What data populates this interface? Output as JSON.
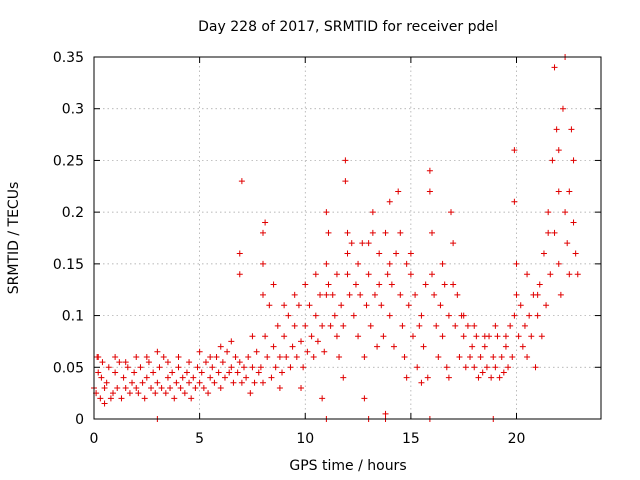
{
  "chart_data": {
    "type": "scatter",
    "title": "Day 228 of 2017, SRMTID for receiver pdel",
    "xlabel": "GPS time / hours",
    "ylabel": "SRMTID / TECUs",
    "xlim": [
      0,
      24
    ],
    "ylim": [
      0,
      0.35
    ],
    "xticks": [
      0,
      5,
      10,
      15,
      20
    ],
    "xtick_labels": [
      "0",
      "5",
      "10",
      "15",
      "20"
    ],
    "yticks": [
      0,
      0.05,
      0.1,
      0.15,
      0.2,
      0.25,
      0.3,
      0.35
    ],
    "ytick_labels": [
      "0",
      "0.05",
      "0.1",
      "0.15",
      "0.2",
      "0.25",
      "0.3",
      "0.35"
    ],
    "grid": true,
    "marker": "+",
    "color": "#e00000",
    "series": [
      {
        "name": "SRMTID",
        "points": [
          [
            0.0,
            0.03
          ],
          [
            0.1,
            0.025
          ],
          [
            0.15,
            0.06
          ],
          [
            0.2,
            0.045
          ],
          [
            0.3,
            0.02
          ],
          [
            0.35,
            0.04
          ],
          [
            0.4,
            0.055
          ],
          [
            0.5,
            0.03
          ],
          [
            0.6,
            0.035
          ],
          [
            0.7,
            0.05
          ],
          [
            0.8,
            0.02
          ],
          [
            0.9,
            0.025
          ],
          [
            1.0,
            0.045
          ],
          [
            1.1,
            0.03
          ],
          [
            1.2,
            0.055
          ],
          [
            1.3,
            0.02
          ],
          [
            1.4,
            0.04
          ],
          [
            1.5,
            0.03
          ],
          [
            1.6,
            0.05
          ],
          [
            1.7,
            0.025
          ],
          [
            1.8,
            0.035
          ],
          [
            1.9,
            0.045
          ],
          [
            2.0,
            0.03
          ],
          [
            2.1,
            0.025
          ],
          [
            2.2,
            0.05
          ],
          [
            2.3,
            0.035
          ],
          [
            2.4,
            0.02
          ],
          [
            2.5,
            0.04
          ],
          [
            2.6,
            0.055
          ],
          [
            2.7,
            0.03
          ],
          [
            2.8,
            0.045
          ],
          [
            2.9,
            0.025
          ],
          [
            3.0,
            0.035
          ],
          [
            3.1,
            0.05
          ],
          [
            3.2,
            0.03
          ],
          [
            3.3,
            0.06
          ],
          [
            3.4,
            0.025
          ],
          [
            3.5,
            0.04
          ],
          [
            3.6,
            0.03
          ],
          [
            3.7,
            0.045
          ],
          [
            3.8,
            0.02
          ],
          [
            3.9,
            0.035
          ],
          [
            4.0,
            0.05
          ],
          [
            4.1,
            0.03
          ],
          [
            4.2,
            0.04
          ],
          [
            4.3,
            0.025
          ],
          [
            4.4,
            0.045
          ],
          [
            4.5,
            0.035
          ],
          [
            4.6,
            0.02
          ],
          [
            4.7,
            0.04
          ],
          [
            4.8,
            0.03
          ],
          [
            4.9,
            0.05
          ],
          [
            5.0,
            0.035
          ],
          [
            5.1,
            0.045
          ],
          [
            5.2,
            0.03
          ],
          [
            5.3,
            0.055
          ],
          [
            5.4,
            0.025
          ],
          [
            5.5,
            0.04
          ],
          [
            5.6,
            0.05
          ],
          [
            5.7,
            0.035
          ],
          [
            5.8,
            0.06
          ],
          [
            5.9,
            0.045
          ],
          [
            6.0,
            0.03
          ],
          [
            6.1,
            0.055
          ],
          [
            6.2,
            0.04
          ],
          [
            6.3,
            0.065
          ],
          [
            6.4,
            0.045
          ],
          [
            6.5,
            0.05
          ],
          [
            6.6,
            0.035
          ],
          [
            6.7,
            0.06
          ],
          [
            6.8,
            0.045
          ],
          [
            6.9,
            0.055
          ],
          [
            7.0,
            0.035
          ],
          [
            7.0,
            0.23
          ],
          [
            6.9,
            0.16
          ],
          [
            6.9,
            0.14
          ],
          [
            7.1,
            0.05
          ],
          [
            7.2,
            0.04
          ],
          [
            7.3,
            0.06
          ],
          [
            7.4,
            0.025
          ],
          [
            7.5,
            0.05
          ],
          [
            7.6,
            0.035
          ],
          [
            7.7,
            0.065
          ],
          [
            7.8,
            0.045
          ],
          [
            7.9,
            0.05
          ],
          [
            8.0,
            0.035
          ],
          [
            8.0,
            0.18
          ],
          [
            8.1,
            0.19
          ],
          [
            8.0,
            0.15
          ],
          [
            8.1,
            0.08
          ],
          [
            8.2,
            0.06
          ],
          [
            8.3,
            0.11
          ],
          [
            8.4,
            0.04
          ],
          [
            8.5,
            0.07
          ],
          [
            8.6,
            0.05
          ],
          [
            8.7,
            0.09
          ],
          [
            8.8,
            0.06
          ],
          [
            8.9,
            0.045
          ],
          [
            9.0,
            0.08
          ],
          [
            9.1,
            0.06
          ],
          [
            9.2,
            0.1
          ],
          [
            9.3,
            0.05
          ],
          [
            9.4,
            0.07
          ],
          [
            9.5,
            0.09
          ],
          [
            9.6,
            0.06
          ],
          [
            9.7,
            0.11
          ],
          [
            9.8,
            0.075
          ],
          [
            9.9,
            0.05
          ],
          [
            10.0,
            0.09
          ],
          [
            10.1,
            0.065
          ],
          [
            10.2,
            0.11
          ],
          [
            10.3,
            0.08
          ],
          [
            10.4,
            0.06
          ],
          [
            10.5,
            0.1
          ],
          [
            10.6,
            0.075
          ],
          [
            10.7,
            0.12
          ],
          [
            10.8,
            0.09
          ],
          [
            10.9,
            0.065
          ],
          [
            11.0,
            0.15
          ],
          [
            11.0,
            0.2
          ],
          [
            11.1,
            0.18
          ],
          [
            11.1,
            0.13
          ],
          [
            11.2,
            0.09
          ],
          [
            11.3,
            0.12
          ],
          [
            11.4,
            0.1
          ],
          [
            11.5,
            0.08
          ],
          [
            11.6,
            0.06
          ],
          [
            11.7,
            0.11
          ],
          [
            11.8,
            0.09
          ],
          [
            11.9,
            0.25
          ],
          [
            11.9,
            0.23
          ],
          [
            12.0,
            0.14
          ],
          [
            12.0,
            0.16
          ],
          [
            12.1,
            0.12
          ],
          [
            12.2,
            0.17
          ],
          [
            12.3,
            0.1
          ],
          [
            12.4,
            0.13
          ],
          [
            12.5,
            0.08
          ],
          [
            12.6,
            0.12
          ],
          [
            12.7,
            0.17
          ],
          [
            12.8,
            0.06
          ],
          [
            12.9,
            0.11
          ],
          [
            13.0,
            0.14
          ],
          [
            13.1,
            0.09
          ],
          [
            13.2,
            0.2
          ],
          [
            13.2,
            0.18
          ],
          [
            13.3,
            0.12
          ],
          [
            13.4,
            0.07
          ],
          [
            13.5,
            0.16
          ],
          [
            13.6,
            0.11
          ],
          [
            13.7,
            0.08
          ],
          [
            13.8,
            0.18
          ],
          [
            13.9,
            0.14
          ],
          [
            14.0,
            0.21
          ],
          [
            14.0,
            0.1
          ],
          [
            14.1,
            0.13
          ],
          [
            14.2,
            0.07
          ],
          [
            14.3,
            0.16
          ],
          [
            14.4,
            0.22
          ],
          [
            14.5,
            0.12
          ],
          [
            14.6,
            0.09
          ],
          [
            14.7,
            0.06
          ],
          [
            14.8,
            0.15
          ],
          [
            14.9,
            0.11
          ],
          [
            15.0,
            0.16
          ],
          [
            15.1,
            0.08
          ],
          [
            15.2,
            0.12
          ],
          [
            15.3,
            0.05
          ],
          [
            15.4,
            0.09
          ],
          [
            15.5,
            0.035
          ],
          [
            15.6,
            0.07
          ],
          [
            15.7,
            0.13
          ],
          [
            15.8,
            0.04
          ],
          [
            15.9,
            0.24
          ],
          [
            15.9,
            0.22
          ],
          [
            16.0,
            0.18
          ],
          [
            16.1,
            0.12
          ],
          [
            16.2,
            0.09
          ],
          [
            16.3,
            0.06
          ],
          [
            16.4,
            0.11
          ],
          [
            16.5,
            0.08
          ],
          [
            16.6,
            0.13
          ],
          [
            16.7,
            0.05
          ],
          [
            16.8,
            0.1
          ],
          [
            16.9,
            0.2
          ],
          [
            17.0,
            0.17
          ],
          [
            17.1,
            0.09
          ],
          [
            17.2,
            0.12
          ],
          [
            17.3,
            0.06
          ],
          [
            17.4,
            0.1
          ],
          [
            17.5,
            0.08
          ],
          [
            17.6,
            0.05
          ],
          [
            17.7,
            0.09
          ],
          [
            17.8,
            0.06
          ],
          [
            17.9,
            0.07
          ],
          [
            18.0,
            0.05
          ],
          [
            18.1,
            0.08
          ],
          [
            18.2,
            0.04
          ],
          [
            18.3,
            0.06
          ],
          [
            18.4,
            0.045
          ],
          [
            18.5,
            0.07
          ],
          [
            18.6,
            0.05
          ],
          [
            18.7,
            0.08
          ],
          [
            18.8,
            0.04
          ],
          [
            18.9,
            0.06
          ],
          [
            19.0,
            0.05
          ],
          [
            19.1,
            0.08
          ],
          [
            19.2,
            0.04
          ],
          [
            19.3,
            0.06
          ],
          [
            19.4,
            0.045
          ],
          [
            19.5,
            0.07
          ],
          [
            19.6,
            0.05
          ],
          [
            19.7,
            0.09
          ],
          [
            19.8,
            0.06
          ],
          [
            19.9,
            0.1
          ],
          [
            19.9,
            0.26
          ],
          [
            19.9,
            0.21
          ],
          [
            20.0,
            0.15
          ],
          [
            20.1,
            0.08
          ],
          [
            20.2,
            0.11
          ],
          [
            20.3,
            0.07
          ],
          [
            20.4,
            0.09
          ],
          [
            20.5,
            0.06
          ],
          [
            20.6,
            0.1
          ],
          [
            20.7,
            0.08
          ],
          [
            20.8,
            0.12
          ],
          [
            20.9,
            0.05
          ],
          [
            21.0,
            0.1
          ],
          [
            21.1,
            0.13
          ],
          [
            21.2,
            0.08
          ],
          [
            21.3,
            0.16
          ],
          [
            21.4,
            0.11
          ],
          [
            21.5,
            0.2
          ],
          [
            21.6,
            0.14
          ],
          [
            21.7,
            0.25
          ],
          [
            21.8,
            0.18
          ],
          [
            21.8,
            0.34
          ],
          [
            21.9,
            0.28
          ],
          [
            22.0,
            0.22
          ],
          [
            22.0,
            0.15
          ],
          [
            22.1,
            0.12
          ],
          [
            22.2,
            0.3
          ],
          [
            22.3,
            0.35
          ],
          [
            22.3,
            0.2
          ],
          [
            22.4,
            0.17
          ],
          [
            22.5,
            0.14
          ],
          [
            22.6,
            0.28
          ],
          [
            22.7,
            0.25
          ],
          [
            22.7,
            0.19
          ],
          [
            22.8,
            0.16
          ],
          [
            22.9,
            0.14
          ],
          [
            0.2,
            0.06
          ],
          [
            0.5,
            0.015
          ],
          [
            1.0,
            0.06
          ],
          [
            1.5,
            0.055
          ],
          [
            2.0,
            0.06
          ],
          [
            2.5,
            0.06
          ],
          [
            3.0,
            0.065
          ],
          [
            3.5,
            0.055
          ],
          [
            4.0,
            0.06
          ],
          [
            4.5,
            0.055
          ],
          [
            5.0,
            0.065
          ],
          [
            5.5,
            0.06
          ],
          [
            6.0,
            0.07
          ],
          [
            6.5,
            0.075
          ],
          [
            7.5,
            0.08
          ],
          [
            8.0,
            0.12
          ],
          [
            8.5,
            0.13
          ],
          [
            9.0,
            0.11
          ],
          [
            9.5,
            0.12
          ],
          [
            10.0,
            0.13
          ],
          [
            10.5,
            0.14
          ],
          [
            11.0,
            0.12
          ],
          [
            11.5,
            0.14
          ],
          [
            12.0,
            0.18
          ],
          [
            12.5,
            0.15
          ],
          [
            13.0,
            0.17
          ],
          [
            13.5,
            0.13
          ],
          [
            14.0,
            0.15
          ],
          [
            14.5,
            0.18
          ],
          [
            15.0,
            0.14
          ],
          [
            15.5,
            0.1
          ],
          [
            16.0,
            0.14
          ],
          [
            16.5,
            0.15
          ],
          [
            17.0,
            0.13
          ],
          [
            17.5,
            0.1
          ],
          [
            18.0,
            0.09
          ],
          [
            18.5,
            0.08
          ],
          [
            19.0,
            0.09
          ],
          [
            19.5,
            0.08
          ],
          [
            20.0,
            0.12
          ],
          [
            20.5,
            0.14
          ],
          [
            21.0,
            0.12
          ],
          [
            21.5,
            0.18
          ],
          [
            22.0,
            0.26
          ],
          [
            22.5,
            0.22
          ],
          [
            10.8,
            0.02
          ],
          [
            13.8,
            0.005
          ],
          [
            12.8,
            0.02
          ],
          [
            9.8,
            0.03
          ],
          [
            8.8,
            0.03
          ],
          [
            11.8,
            0.04
          ],
          [
            14.8,
            0.04
          ],
          [
            16.8,
            0.04
          ],
          [
            3.0,
            0.0
          ],
          [
            11.0,
            0.0
          ],
          [
            13.0,
            0.0
          ],
          [
            13.8,
            0.0
          ],
          [
            15.9,
            0.0
          ],
          [
            18.9,
            0.0
          ]
        ]
      }
    ]
  }
}
